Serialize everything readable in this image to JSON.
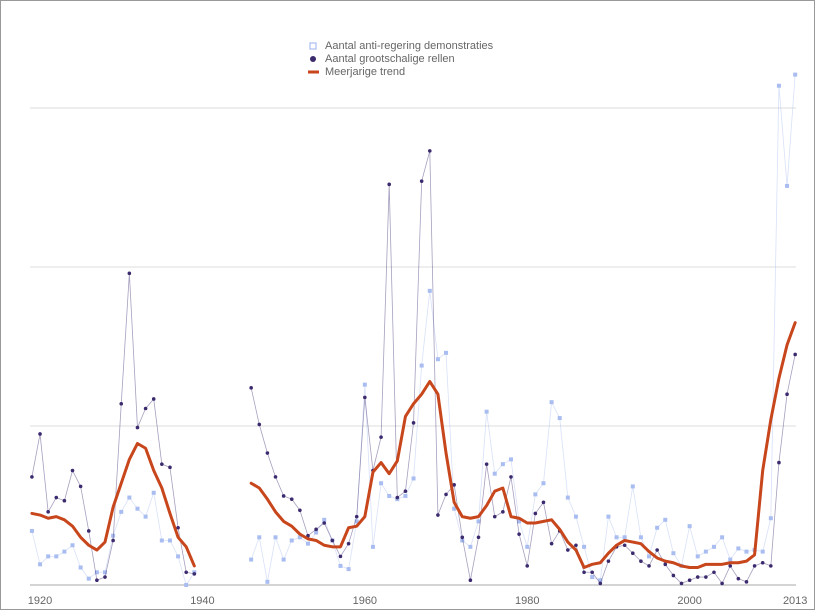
{
  "chart_data": {
    "type": "line",
    "x": [
      1919,
      1920,
      1921,
      1922,
      1923,
      1924,
      1925,
      1926,
      1927,
      1928,
      1929,
      1930,
      1931,
      1932,
      1933,
      1934,
      1935,
      1936,
      1937,
      1938,
      1939,
      1940,
      1941,
      1942,
      1943,
      1944,
      1945,
      1946,
      1947,
      1948,
      1949,
      1950,
      1951,
      1952,
      1953,
      1954,
      1955,
      1956,
      1957,
      1958,
      1959,
      1960,
      1961,
      1962,
      1963,
      1964,
      1965,
      1966,
      1967,
      1968,
      1969,
      1970,
      1971,
      1972,
      1973,
      1974,
      1975,
      1976,
      1977,
      1978,
      1979,
      1980,
      1981,
      1982,
      1983,
      1984,
      1985,
      1986,
      1987,
      1988,
      1989,
      1990,
      1991,
      1992,
      1993,
      1994,
      1995,
      1996,
      1997,
      1998,
      1999,
      2000,
      2001,
      2002,
      2003,
      2004,
      2005,
      2006,
      2007,
      2008,
      2009,
      2010,
      2011,
      2012,
      2013
    ],
    "series": [
      {
        "name": "Aantal anti-regering demonstraties",
        "color": "#a9bdf0",
        "marker": "square",
        "values": [
          3.4,
          1.3,
          1.8,
          1.8,
          2.1,
          2.5,
          1.1,
          0.4,
          0.8,
          0.8,
          3.1,
          4.6,
          5.5,
          4.8,
          4.3,
          5.8,
          2.8,
          2.8,
          1.8,
          0,
          0.8,
          null,
          null,
          null,
          null,
          null,
          null,
          1.6,
          3.0,
          0.2,
          3.0,
          1.6,
          2.8,
          3.0,
          2.6,
          3.3,
          4.1,
          2.8,
          1.2,
          1.0,
          4.0,
          12.6,
          2.4,
          6.4,
          5.6,
          5.4,
          5.6,
          6.7,
          13.8,
          18.5,
          14.2,
          14.6,
          4.8,
          2.8,
          2.4,
          4.0,
          10.9,
          7.0,
          7.6,
          7.9,
          4.0,
          2.4,
          5.7,
          6.4,
          11.5,
          10.5,
          5.5,
          4.3,
          2.4,
          0.5,
          0.3,
          4.3,
          3.0,
          3.0,
          6.2,
          3.0,
          1.8,
          3.6,
          4.1,
          2.0,
          1.2,
          3.7,
          1.8,
          2.1,
          2.4,
          3.0,
          1.6,
          2.3,
          2.1,
          2.2,
          2.1,
          4.2,
          31.4,
          25.1,
          32.1
        ]
      },
      {
        "name": "Aantal grootschalige rellen",
        "color": "#3b2a6e",
        "marker": "dot",
        "values": [
          6.8,
          9.5,
          4.6,
          5.5,
          5.3,
          7.2,
          6.2,
          3.4,
          0.3,
          0.5,
          2.8,
          11.4,
          19.6,
          9.9,
          11.1,
          11.7,
          7.6,
          7.4,
          3.6,
          0.8,
          0.7,
          null,
          null,
          null,
          null,
          null,
          null,
          12.4,
          10.1,
          8.3,
          6.8,
          5.6,
          5.4,
          4.7,
          3.1,
          3.5,
          3.9,
          2.8,
          1.8,
          2.6,
          4.3,
          11.8,
          7.2,
          9.3,
          25.2,
          5.5,
          5.9,
          10.2,
          25.4,
          27.3,
          4.4,
          5.7,
          6.3,
          3.0,
          0.3,
          3.0,
          7.6,
          4.3,
          4.6,
          6.8,
          3.2,
          1.2,
          4.5,
          5.2,
          2.6,
          3.4,
          2.2,
          2.5,
          0.8,
          0.8,
          0.1,
          1.5,
          2.4,
          2.5,
          2.0,
          1.5,
          1.2,
          2.2,
          1.3,
          0.6,
          0.1,
          0.3,
          0.5,
          0.5,
          0.8,
          0.1,
          1.2,
          0.4,
          0.2,
          1.2,
          1.4,
          1.2,
          7.7,
          12.0,
          14.5
        ]
      },
      {
        "name": "Meerjarige trend",
        "color": "#c8461b",
        "marker": "none",
        "values": [
          4.5,
          4.4,
          4.2,
          4.3,
          4.1,
          3.7,
          3.0,
          2.5,
          2.2,
          2.7,
          4.9,
          6.4,
          7.9,
          8.9,
          8.6,
          7.2,
          6.1,
          4.5,
          3.0,
          2.4,
          1.2,
          null,
          null,
          null,
          null,
          null,
          null,
          6.4,
          6.1,
          5.4,
          4.6,
          4.0,
          3.7,
          3.2,
          2.9,
          2.8,
          2.5,
          2.4,
          2.4,
          3.6,
          3.7,
          4.3,
          7.1,
          7.7,
          7.0,
          7.8,
          10.6,
          11.4,
          12.0,
          12.8,
          12.0,
          8.3,
          5.2,
          4.3,
          4.2,
          4.3,
          5.0,
          5.9,
          6.1,
          4.3,
          4.2,
          3.9,
          3.9,
          4.0,
          4.1,
          3.5,
          2.7,
          2.2,
          1.1,
          1.3,
          1.4,
          2.0,
          2.5,
          2.8,
          2.7,
          2.6,
          2.1,
          1.7,
          1.5,
          1.4,
          1.2,
          1.1,
          1.1,
          1.3,
          1.3,
          1.3,
          1.4,
          1.4,
          1.5,
          1.9,
          7.2,
          10.4,
          13.0,
          15.1,
          16.5
        ]
      }
    ],
    "xlim": [
      1918,
      2014
    ],
    "xticks": [
      1920,
      1940,
      1960,
      1980,
      2000,
      2013
    ],
    "ylim": [
      0,
      35
    ],
    "yticks": [
      0,
      10,
      20,
      30
    ],
    "grid": true,
    "legend": "top"
  }
}
